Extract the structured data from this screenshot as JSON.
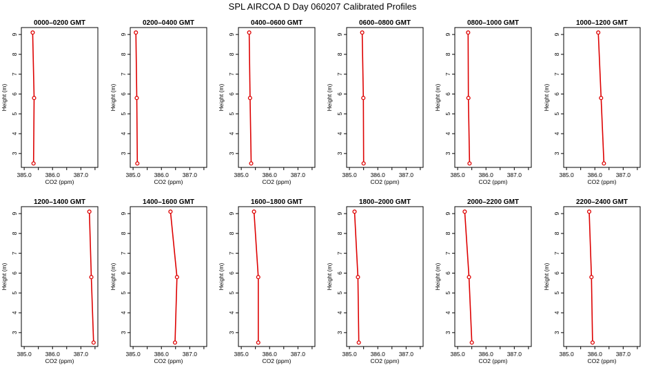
{
  "figure": {
    "title": "SPL AIRCOA D  Day 060207  Calibrated Profiles"
  },
  "colors": {
    "line": "#dd0000",
    "point": "#dd0000",
    "axis": "#000000"
  },
  "chart_data": {
    "type": "line",
    "orientation": "vertical-profile",
    "xlabel": "CO2 (ppm)",
    "ylabel": "Height (m)",
    "xlim": [
      384.9,
      387.6
    ],
    "ylim": [
      2.3,
      9.35
    ],
    "x_ticks": [
      385.0,
      386.0,
      387.0
    ],
    "x_tick_labels": [
      "385.0",
      "386.0",
      "387.0"
    ],
    "y_ticks": [
      3,
      4,
      5,
      6,
      7,
      8,
      9
    ],
    "y_tick_labels": [
      "3",
      "4",
      "5",
      "6",
      "7",
      "8",
      "9"
    ],
    "heights": [
      9.1,
      5.8,
      2.5
    ],
    "panels": [
      {
        "title": "0000–0200 GMT",
        "co2": [
          385.3,
          385.35,
          385.33
        ]
      },
      {
        "title": "0200–0400 GMT",
        "co2": [
          385.1,
          385.13,
          385.15
        ]
      },
      {
        "title": "0400–0600 GMT",
        "co2": [
          385.28,
          385.31,
          385.35
        ]
      },
      {
        "title": "0600–0800 GMT",
        "co2": [
          385.45,
          385.49,
          385.5
        ]
      },
      {
        "title": "0800–1000 GMT",
        "co2": [
          385.37,
          385.38,
          385.42
        ]
      },
      {
        "title": "1000–1200 GMT",
        "co2": [
          386.12,
          386.22,
          386.32
        ]
      },
      {
        "title": "1200–1400 GMT",
        "co2": [
          387.3,
          387.37,
          387.45
        ]
      },
      {
        "title": "1400–1600 GMT",
        "co2": [
          386.32,
          386.55,
          386.48
        ]
      },
      {
        "title": "1600–1800 GMT",
        "co2": [
          385.45,
          385.6,
          385.6
        ]
      },
      {
        "title": "1800–2000 GMT",
        "co2": [
          385.18,
          385.3,
          385.33
        ]
      },
      {
        "title": "2000–2200 GMT",
        "co2": [
          385.25,
          385.4,
          385.5
        ]
      },
      {
        "title": "2200–2400 GMT",
        "co2": [
          385.8,
          385.88,
          385.92
        ]
      }
    ]
  }
}
